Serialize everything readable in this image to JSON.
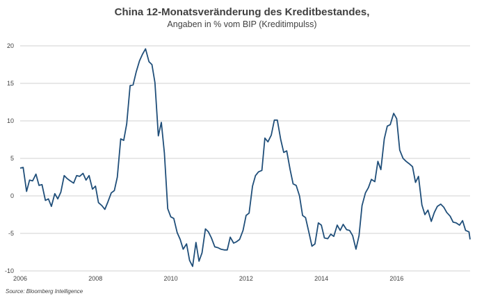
{
  "chart_data": {
    "type": "line",
    "title": "China 12-Monatsveränderung des Kreditbestandes,",
    "subtitle": "Angaben in % vom BIP (Kreditimpulss)",
    "xlabel": "",
    "ylabel": "",
    "xlim": [
      2006.0,
      2017.95
    ],
    "ylim": [
      -10,
      20
    ],
    "yticks": [
      "20",
      "15",
      "10",
      "5",
      "0",
      "-5",
      "-10"
    ],
    "xticks": [
      "2006",
      "2008",
      "2010",
      "2012",
      "2014",
      "2016"
    ],
    "grid": "horizontal",
    "line_color": "#1f4e79",
    "series": [
      {
        "x": [
          2006.0,
          2006.08,
          2006.17,
          2006.25,
          2006.33,
          2006.42,
          2006.5,
          2006.58,
          2006.67,
          2006.75,
          2006.83,
          2006.92,
          2007.0,
          2007.08,
          2007.17,
          2007.25,
          2007.33,
          2007.42,
          2007.5,
          2007.58,
          2007.67,
          2007.75,
          2007.83,
          2007.92,
          2008.0,
          2008.08,
          2008.17,
          2008.25,
          2008.33,
          2008.42,
          2008.5,
          2008.58,
          2008.67,
          2008.75,
          2008.83,
          2008.92,
          2009.0,
          2009.08,
          2009.17,
          2009.25,
          2009.33,
          2009.42,
          2009.5,
          2009.58,
          2009.67,
          2009.75,
          2009.83,
          2009.92,
          2010.0,
          2010.08,
          2010.17,
          2010.25,
          2010.33,
          2010.42,
          2010.5,
          2010.58,
          2010.67,
          2010.75,
          2010.83,
          2010.92,
          2011.0,
          2011.08,
          2011.17,
          2011.25,
          2011.33,
          2011.42,
          2011.5,
          2011.58,
          2011.67,
          2011.75,
          2011.83,
          2011.92,
          2012.0,
          2012.08,
          2012.17,
          2012.25,
          2012.33,
          2012.42,
          2012.5,
          2012.58,
          2012.67,
          2012.75,
          2012.83,
          2012.92,
          2013.0,
          2013.08,
          2013.17,
          2013.25,
          2013.33,
          2013.42,
          2013.5,
          2013.58,
          2013.67,
          2013.75,
          2013.83,
          2013.92,
          2014.0,
          2014.08,
          2014.17,
          2014.25,
          2014.33,
          2014.42,
          2014.5,
          2014.58,
          2014.67,
          2014.75,
          2014.83,
          2014.92,
          2015.0,
          2015.08,
          2015.17,
          2015.25,
          2015.33,
          2015.42,
          2015.5,
          2015.58,
          2015.67,
          2015.75,
          2015.83,
          2015.92,
          2016.0,
          2016.08,
          2016.17,
          2016.25,
          2016.33,
          2016.42,
          2016.5,
          2016.58,
          2016.67,
          2016.75,
          2016.83,
          2016.92,
          2017.0,
          2017.08,
          2017.17,
          2017.25,
          2017.33,
          2017.42,
          2017.5,
          2017.58,
          2017.67,
          2017.75,
          2017.83,
          2017.92,
          2017.95
        ],
        "values": [
          3.7,
          3.8,
          0.6,
          2.1,
          2.0,
          2.9,
          1.4,
          1.5,
          -0.6,
          -0.4,
          -1.4,
          0.3,
          -0.4,
          0.5,
          2.7,
          2.3,
          2.0,
          1.7,
          2.7,
          2.6,
          3.0,
          2.1,
          2.7,
          0.9,
          1.3,
          -0.9,
          -1.3,
          -1.8,
          -0.8,
          0.4,
          0.7,
          2.5,
          7.6,
          7.4,
          9.6,
          14.7,
          14.8,
          16.5,
          18.0,
          18.9,
          19.6,
          17.9,
          17.5,
          15.1,
          8.0,
          9.8,
          5.7,
          -1.7,
          -2.8,
          -3.0,
          -4.9,
          -5.8,
          -7.1,
          -6.4,
          -8.6,
          -9.4,
          -6.2,
          -8.7,
          -7.6,
          -4.4,
          -4.8,
          -5.6,
          -6.8,
          -6.9,
          -7.1,
          -7.2,
          -7.2,
          -5.5,
          -6.3,
          -6.1,
          -5.8,
          -4.6,
          -2.6,
          -2.3,
          1.3,
          2.7,
          3.2,
          3.4,
          7.7,
          7.2,
          8.1,
          10.1,
          10.1,
          7.5,
          5.8,
          6.0,
          3.5,
          1.6,
          1.4,
          0.0,
          -2.6,
          -2.9,
          -4.9,
          -6.7,
          -6.4,
          -3.6,
          -3.9,
          -5.6,
          -5.7,
          -5.1,
          -5.4,
          -3.9,
          -4.6,
          -3.8,
          -4.5,
          -4.6,
          -5.3,
          -7.1,
          -5.3,
          -1.3,
          0.4,
          1.1,
          2.2,
          1.9,
          4.6,
          3.5,
          7.6,
          9.3,
          9.5,
          11.0,
          10.3,
          6.1,
          5.0,
          4.6,
          4.3,
          3.9,
          1.8,
          2.6,
          -1.2,
          -2.5,
          -1.9,
          -3.4,
          -2.2,
          -1.4,
          -1.1,
          -1.5,
          -2.2,
          -2.7,
          -3.5,
          -3.6,
          -3.9,
          -3.3,
          -4.6,
          -4.8,
          -5.8
        ]
      }
    ]
  },
  "source": "Source: Bloomberg Intelligence"
}
